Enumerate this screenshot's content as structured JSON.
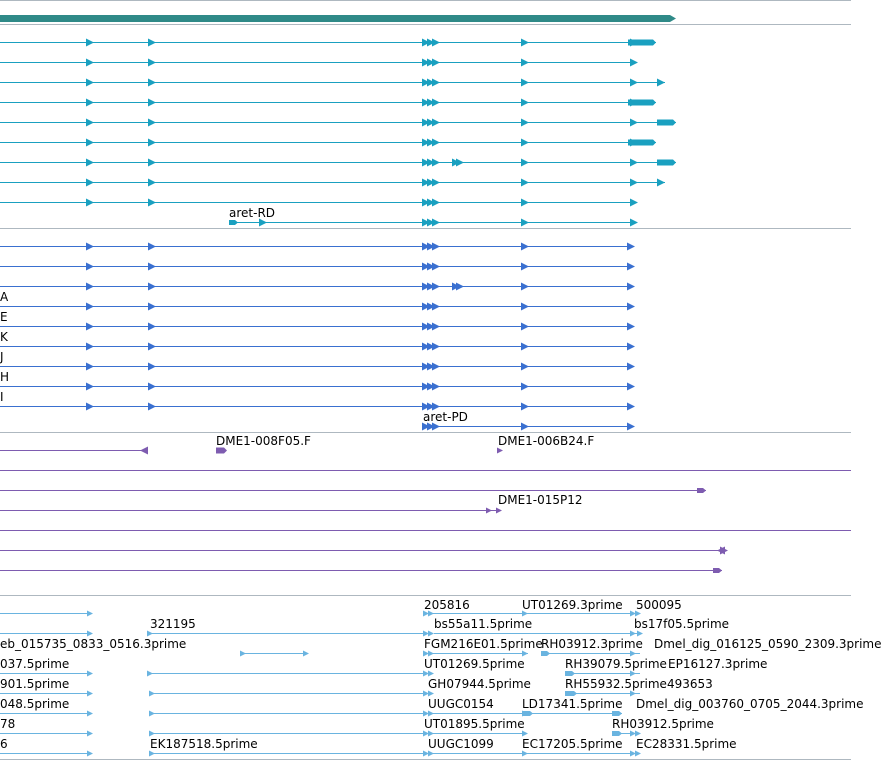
{
  "browser": {
    "colors": {
      "gene": "#2f8a88",
      "transcript": "#1aa0c0",
      "protein": "#3a70d0",
      "clone": "#7e5cb0",
      "est": "#6ab4e0",
      "divider": "#aeb8c0",
      "text": "#000000"
    },
    "tracks": {
      "transcripts": {
        "label": "aret-RD"
      },
      "proteins": {
        "edge_labels": [
          "A",
          "E",
          "K",
          "J",
          "H",
          "I"
        ],
        "label": "aret-PD"
      },
      "clones": {
        "labels": [
          "DME1-008F05.F",
          "DME1-006B24.F",
          "DME1-015P12"
        ]
      },
      "ests": {
        "labels": [
          "205816",
          "UT01269.3prime",
          "500095",
          "321195",
          "bs55a11.5prime",
          "bs17f05.5prime",
          "eb_015735_0833_0516.3prime",
          "FGM216E01.5prime",
          "RH03912.3prime",
          "Dmel_dig_016125_0590_2309.3prime",
          "037.5prime",
          "UT01269.5prime",
          "RH39079.5prime",
          "EP16127.3prime",
          "901.5prime",
          "GH07944.5prime",
          "RH55932.5prime",
          "493653",
          "048.5prime",
          "UUGC0154",
          "LD17341.5prime",
          "Dmel_dig_003760_0705_2044.3prime",
          "78",
          "UT01895.5prime",
          "RH03912.5prime",
          "6",
          "EK187518.5prime",
          "UUGC1099",
          "EC17205.5prime",
          "EC28331.5prime"
        ]
      }
    }
  }
}
